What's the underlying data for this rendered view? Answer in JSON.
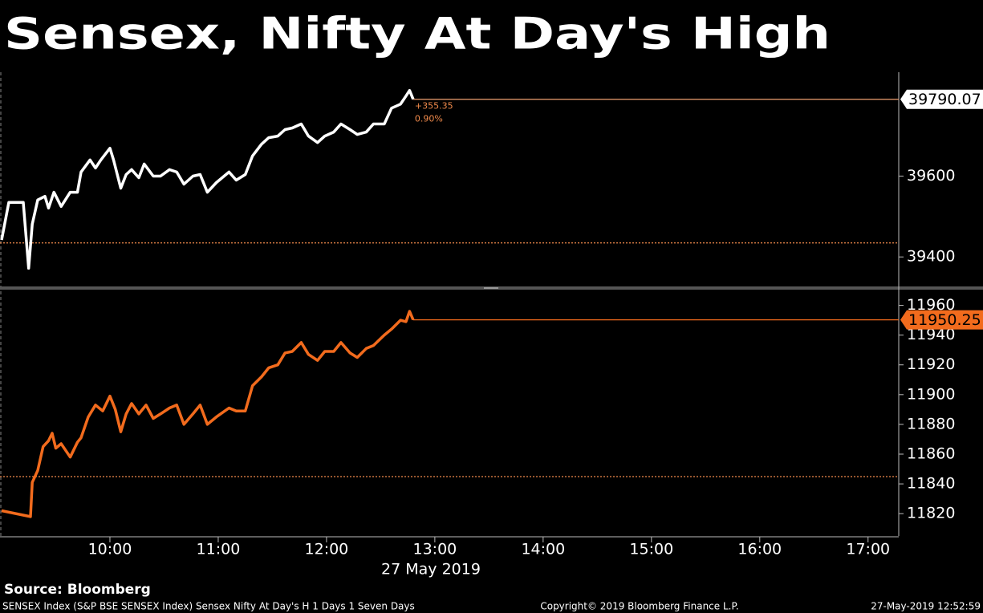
{
  "title": "Sensex, Nifty At Day's High",
  "source": "Source: Bloomberg",
  "footer": {
    "left": "SENSEX Index (S&P BSE SENSEX Index) Sensex Nifty At Day's H 1 Days 1 Seven Days",
    "center": "Copyright© 2019 Bloomberg Finance L.P.",
    "right": "27-May-2019 12:52:59"
  },
  "chart_data": [
    {
      "type": "line",
      "series": [
        {
          "name": "SENSEX Index",
          "color": "#ffffff",
          "x": [
            540,
            544,
            552,
            555,
            557,
            560,
            564,
            566,
            569,
            573,
            578,
            582,
            584,
            589,
            592,
            595,
            600,
            602,
            606,
            609,
            612,
            616,
            619,
            624,
            628,
            633,
            637,
            641,
            646,
            650,
            654,
            659,
            666,
            670,
            675,
            679,
            684,
            688,
            693,
            697,
            701,
            706,
            710,
            715,
            719,
            724,
            728,
            733,
            737,
            742,
            746,
            752,
            756,
            761,
            764,
            766,
            768
          ],
          "values": [
            39442,
            39535,
            39535,
            39372,
            39481,
            39541,
            39550,
            39521,
            39560,
            39525,
            39560,
            39560,
            39610,
            39640,
            39620,
            39640,
            39669,
            39640,
            39570,
            39604,
            39616,
            39596,
            39630,
            39600,
            39600,
            39616,
            39610,
            39580,
            39600,
            39604,
            39560,
            39584,
            39610,
            39590,
            39604,
            39650,
            39679,
            39695,
            39699,
            39715,
            39719,
            39729,
            39699,
            39683,
            39699,
            39709,
            39729,
            39715,
            39703,
            39709,
            39729,
            39729,
            39768,
            39778,
            39798,
            39812,
            39790.07
          ]
        }
      ],
      "baseline": 39434.72,
      "baseline_color": "#f08a4b",
      "last_line_color": "#f0a070",
      "annotations": [
        "+355.35",
        "0.90%"
      ],
      "xlim": [
        540,
        1037
      ],
      "ylim": [
        39327,
        39857
      ],
      "yticks": [
        39400,
        39600
      ]
    },
    {
      "type": "line",
      "series": [
        {
          "name": "NIFTY Index",
          "color": "#f26b1d",
          "x": [
            540,
            556,
            557,
            560,
            563,
            566,
            568,
            570,
            573,
            578,
            582,
            584,
            588,
            592,
            596,
            600,
            603,
            606,
            609,
            612,
            616,
            620,
            624,
            628,
            633,
            637,
            641,
            646,
            650,
            654,
            659,
            666,
            670,
            675,
            679,
            684,
            688,
            693,
            697,
            701,
            706,
            710,
            715,
            719,
            724,
            728,
            733,
            737,
            742,
            746,
            752,
            756,
            761,
            764,
            766,
            768
          ],
          "values": [
            11822,
            11818,
            11841,
            11849,
            11865,
            11869,
            11874,
            11864,
            11867,
            11858,
            11868,
            11871,
            11885,
            11893,
            11889,
            11899,
            11890,
            11875,
            11887,
            11894,
            11887,
            11893,
            11884,
            11887,
            11891,
            11893,
            11880,
            11887,
            11893,
            11880,
            11885,
            11891,
            11889,
            11889,
            11906,
            11912,
            11918,
            11920,
            11928,
            11929,
            11935,
            11927,
            11923,
            11929,
            11929,
            11935,
            11928,
            11925,
            11931,
            11933,
            11940,
            11944,
            11950,
            11949,
            11956,
            11950.25
          ]
        }
      ],
      "baseline": 11844.9,
      "baseline_color": "#f08a4b",
      "last_line_color": "#f26b1d",
      "xlim": [
        540,
        1037
      ],
      "ylim": [
        11805,
        11970
      ],
      "yticks": [
        11820,
        11840,
        11860,
        11880,
        11900,
        11920,
        11940,
        11960
      ],
      "xticks": [
        {
          "value": 600,
          "label": "10:00"
        },
        {
          "value": 660,
          "label": "11:00"
        },
        {
          "value": 720,
          "label": "12:00"
        },
        {
          "value": 780,
          "label": "13:00"
        },
        {
          "value": 840,
          "label": "14:00"
        },
        {
          "value": 900,
          "label": "15:00"
        },
        {
          "value": 960,
          "label": "16:00"
        },
        {
          "value": 1020,
          "label": "17:00"
        }
      ],
      "xlabel": "27 May 2019"
    }
  ]
}
